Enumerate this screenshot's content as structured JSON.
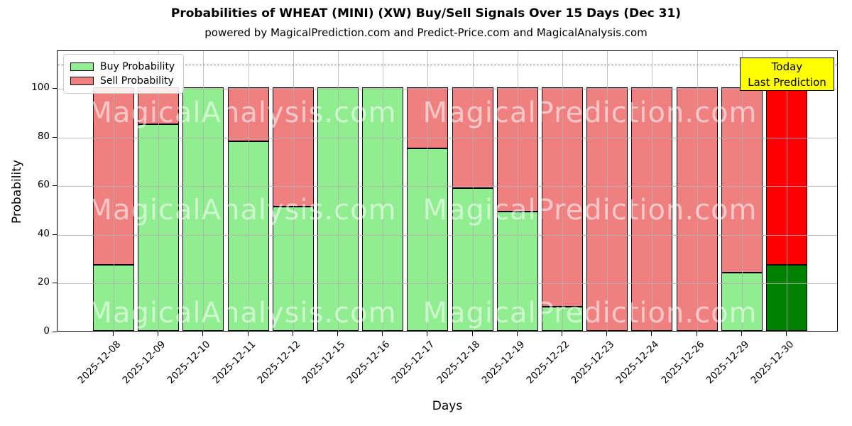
{
  "title": "Probabilities of WHEAT (MINI) (XW) Buy/Sell Signals Over 15 Days (Dec 31)",
  "subtitle": "powered by MagicalPrediction.com and Predict-Price.com and MagicalAnalysis.com",
  "axes": {
    "xlabel": "Days",
    "ylabel": "Probability",
    "yticks": [
      0,
      20,
      40,
      60,
      80,
      100
    ],
    "ylim": [
      0,
      115.5
    ],
    "reference_line_y": 110,
    "grid": true
  },
  "legend": {
    "position": "upper left",
    "items": [
      {
        "label": "Buy Probability",
        "color": "#90EE90"
      },
      {
        "label": "Sell Probability",
        "color": "#F08080"
      }
    ]
  },
  "annotation": {
    "line1": "Today",
    "line2": "Last Prediction",
    "bg_color": "#FFFF00",
    "border_color": "#000000"
  },
  "watermarks": {
    "left_text": "MagicalAnalysis.com",
    "right_text": "MagicalPrediction.com"
  },
  "chart_data": {
    "type": "bar",
    "stacked": true,
    "title": "Probabilities of WHEAT (MINI) (XW) Buy/Sell Signals Over 15 Days (Dec 31)",
    "xlabel": "Days",
    "ylabel": "Probability",
    "ylim": [
      0,
      115.5
    ],
    "legend_position": "upper left",
    "grid": true,
    "categories": [
      "2025-12-08",
      "2025-12-09",
      "2025-12-10",
      "2025-12-11",
      "2025-12-12",
      "2025-12-15",
      "2025-12-16",
      "2025-12-17",
      "2025-12-18",
      "2025-12-19",
      "2025-12-22",
      "2025-12-23",
      "2025-12-24",
      "2025-12-26",
      "2025-12-29",
      "2025-12-30"
    ],
    "series": [
      {
        "name": "Buy Probability",
        "color": "#90EE90",
        "values": [
          27,
          85,
          100,
          78,
          51,
          100,
          100,
          75,
          58.5,
          49,
          10,
          0,
          0,
          0,
          24,
          27
        ]
      },
      {
        "name": "Sell Probability",
        "color": "#F08080",
        "values": [
          73,
          15,
          0,
          22,
          49,
          0,
          0,
          25,
          41.5,
          51,
          90,
          100,
          100,
          100,
          76,
          73
        ]
      }
    ],
    "highlight_last_bar": {
      "buy_color": "#008000",
      "sell_color": "#FF0000",
      "note": "today / last prediction bar"
    }
  }
}
